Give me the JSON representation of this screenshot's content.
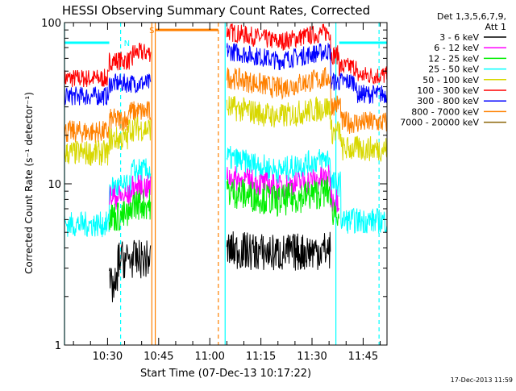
{
  "chart_data": {
    "type": "line",
    "title": "HESSI Observing Summary Count Rates, Corrected",
    "xlabel": "Start Time (07-Dec-13 10:17:22)",
    "ylabel": "Corrected Count Rate (s⁻¹ detector⁻¹)",
    "y_scale": "log",
    "ylim": [
      1,
      100
    ],
    "xlim": [
      "10:17:22",
      "11:52:00"
    ],
    "x_ticks": [
      "10:30",
      "10:45",
      "11:00",
      "11:15",
      "11:30",
      "11:45"
    ],
    "y_ticks": [
      "1",
      "10",
      "100"
    ],
    "legend": {
      "position": "right",
      "header": [
        "Det 1,3,5,6,7,9,",
        "Att 1"
      ],
      "entries": [
        {
          "label": "3 - 6 keV",
          "color": "#000000"
        },
        {
          "label": "6 - 12 keV",
          "color": "#ff00ff"
        },
        {
          "label": "12 - 25 keV",
          "color": "#00ee00"
        },
        {
          "label": "25 - 50 keV",
          "color": "#00ffff"
        },
        {
          "label": "50 - 100 keV",
          "color": "#d8d800"
        },
        {
          "label": "100 - 300 keV",
          "color": "#ff0000"
        },
        {
          "label": "300 - 800 keV",
          "color": "#0000ff"
        },
        {
          "label": "800 - 7000 keV",
          "color": "#ff8000"
        },
        {
          "label": "7000 - 20000 keV",
          "color": "#8b6508"
        }
      ]
    },
    "series": [
      {
        "name": "100 - 300 keV",
        "color": "#ff0000",
        "noise": 0.06,
        "segments": [
          {
            "t0": "10:17:22",
            "t1": "10:30:30",
            "v": 45
          },
          {
            "t0": "10:30:30",
            "t1": "10:37:20",
            "v": 58
          },
          {
            "t0": "10:37:20",
            "t1": "10:42:40",
            "v": 65
          },
          {
            "t0": "11:05:00",
            "t1": "11:35:30",
            "bump": [
              88,
              76,
              88
            ]
          },
          {
            "t0": "11:35:30",
            "t1": "11:38:00",
            "v": 63
          },
          {
            "t0": "11:38:00",
            "t1": "11:43:00",
            "v": 53
          },
          {
            "t0": "11:43:00",
            "t1": "11:52:00",
            "v": 47
          }
        ]
      },
      {
        "name": "300 - 800 keV",
        "color": "#0000ff",
        "noise": 0.06,
        "segments": [
          {
            "t0": "10:17:22",
            "t1": "10:30:30",
            "v": 35
          },
          {
            "t0": "10:30:30",
            "t1": "10:42:40",
            "v": 42
          },
          {
            "t0": "11:05:00",
            "t1": "11:35:30",
            "bump": [
              67,
              58,
              67
            ]
          },
          {
            "t0": "11:35:30",
            "t1": "11:43:00",
            "v": 43
          },
          {
            "t0": "11:43:00",
            "t1": "11:52:00",
            "v": 36
          }
        ]
      },
      {
        "name": "800 - 7000 keV",
        "color": "#ff8000",
        "noise": 0.07,
        "segments": [
          {
            "t0": "10:17:22",
            "t1": "10:30:30",
            "v": 21
          },
          {
            "t0": "10:30:30",
            "t1": "10:36:00",
            "v": 25
          },
          {
            "t0": "10:36:00",
            "t1": "10:42:40",
            "v": 28
          },
          {
            "t0": "11:05:00",
            "t1": "11:35:30",
            "bump": [
              46,
              39,
              46
            ]
          },
          {
            "t0": "11:35:30",
            "t1": "11:38:30",
            "v": 31
          },
          {
            "t0": "11:38:30",
            "t1": "11:52:00",
            "v": 24
          }
        ]
      },
      {
        "name": "50 - 100 keV",
        "color": "#d8d800",
        "noise": 0.08,
        "segments": [
          {
            "t0": "10:17:22",
            "t1": "10:30:30",
            "v": 15.5
          },
          {
            "t0": "10:30:30",
            "t1": "10:36:00",
            "v": 19
          },
          {
            "t0": "10:36:00",
            "t1": "10:42:40",
            "v": 22
          },
          {
            "t0": "11:05:00",
            "t1": "11:35:30",
            "bump": [
              30,
              26,
              30
            ]
          },
          {
            "t0": "11:35:30",
            "t1": "11:38:30",
            "v": 21
          },
          {
            "t0": "11:38:30",
            "t1": "11:52:00",
            "v": 16.5
          }
        ]
      },
      {
        "name": "25 - 50 keV",
        "color": "#00ffff",
        "noise": 0.08,
        "segments": [
          {
            "t0": "10:17:22",
            "t1": "10:30:30",
            "v": 5.6
          },
          {
            "t0": "10:30:30",
            "t1": "10:37:00",
            "v": 9.5
          },
          {
            "t0": "10:37:00",
            "t1": "10:42:40",
            "v": 12
          },
          {
            "t0": "11:05:00",
            "t1": "11:35:30",
            "bump": [
              14.5,
              12,
              14.5
            ]
          },
          {
            "t0": "11:35:30",
            "t1": "11:38:30",
            "v": 10
          },
          {
            "t0": "11:38:30",
            "t1": "11:52:00",
            "v": 5.9
          }
        ]
      },
      {
        "name": "6 - 12 keV",
        "color": "#ff00ff",
        "noise": 0.08,
        "segments": [
          {
            "t0": "10:30:30",
            "t1": "10:37:00",
            "v": 8.3
          },
          {
            "t0": "10:37:00",
            "t1": "10:42:40",
            "v": 9.5
          },
          {
            "t0": "11:05:00",
            "t1": "11:35:30",
            "bump": [
              11,
              9.5,
              11
            ]
          },
          {
            "t0": "11:35:30",
            "t1": "11:38:00",
            "v": 8
          }
        ]
      },
      {
        "name": "12 - 25 keV",
        "color": "#00ee00",
        "noise": 0.1,
        "segments": [
          {
            "t0": "10:30:30",
            "t1": "10:37:00",
            "v": 6.3
          },
          {
            "t0": "10:37:00",
            "t1": "10:42:40",
            "v": 7.5
          },
          {
            "t0": "11:05:00",
            "t1": "11:35:30",
            "bump": [
              9,
              7.8,
              9
            ]
          },
          {
            "t0": "11:35:30",
            "t1": "11:38:00",
            "v": 6.8
          }
        ]
      },
      {
        "name": "3 - 6 keV",
        "color": "#000000",
        "noise": 0.12,
        "segments": [
          {
            "t0": "10:30:30",
            "t1": "10:33:00",
            "v": 2.3
          },
          {
            "t0": "10:33:00",
            "t1": "10:42:40",
            "v": 3.4
          },
          {
            "t0": "11:05:00",
            "t1": "11:35:30",
            "bump": [
              3.9,
              3.7,
              3.9
            ]
          }
        ]
      }
    ],
    "flags": [
      {
        "label": "N",
        "color": "#00ffff",
        "v": 75,
        "t0": "10:17:22",
        "t1": "10:30:30"
      },
      {
        "label": "N",
        "color": "#00ffff",
        "v": 75,
        "t0": "11:38:00",
        "t1": "11:52:00"
      },
      {
        "label": "S",
        "color": "#ff8000",
        "v": 90,
        "t0": "10:44:00",
        "t1": "11:02:30"
      }
    ],
    "flag_labels": [
      {
        "text": "N",
        "color": "#00ffff",
        "t": "10:35:40",
        "v": 75
      },
      {
        "text": "S",
        "color": "#ff8000",
        "t": "10:43:00",
        "v": 90
      }
    ],
    "vlines": [
      {
        "t": "10:17:22",
        "color": "#00ffff",
        "dash": false
      },
      {
        "t": "10:33:50",
        "color": "#00ffff",
        "dash": true
      },
      {
        "t": "10:43:00",
        "color": "#ff8000",
        "dash": false
      },
      {
        "t": "10:44:00",
        "color": "#ff8000",
        "dash": false
      },
      {
        "t": "11:02:30",
        "color": "#ff8000",
        "dash": true
      },
      {
        "t": "11:04:30",
        "color": "#00ffff",
        "dash": false
      },
      {
        "t": "11:37:00",
        "color": "#00ffff",
        "dash": false
      },
      {
        "t": "11:49:40",
        "color": "#00ffff",
        "dash": true
      }
    ],
    "timestamp": "17-Dec-2013 11:59"
  }
}
